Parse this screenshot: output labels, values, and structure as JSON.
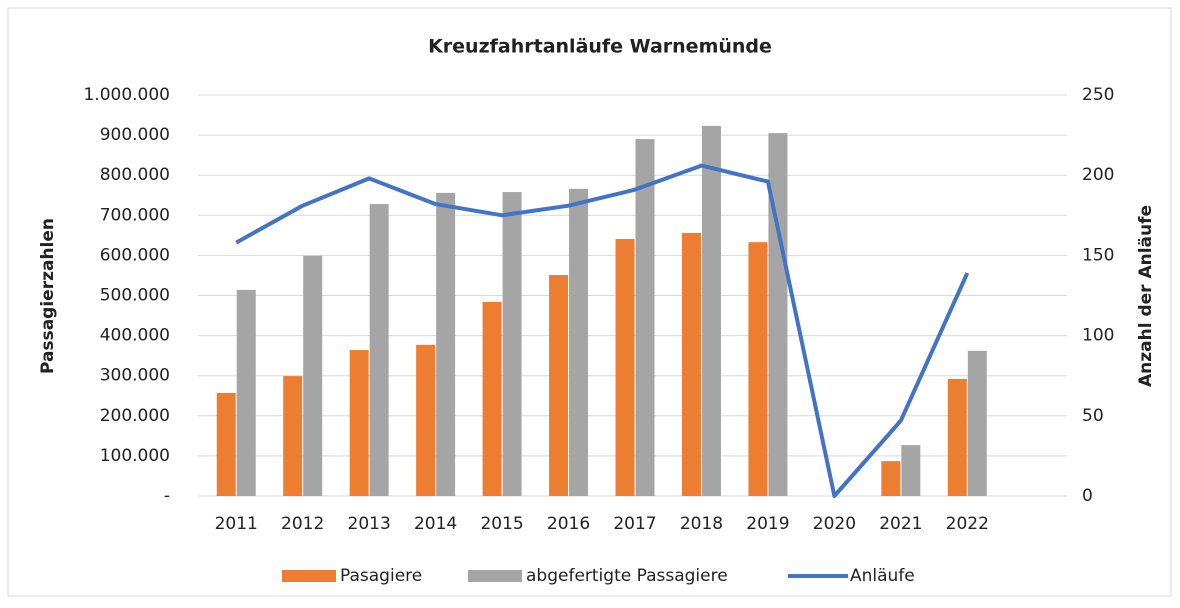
{
  "chart_data": {
    "type": "bar-line",
    "title": "Kreuzfahrtanläufe Warnemünde",
    "y_label": "Passagierzahlen",
    "y2_label": "Anzahl der Anläufe",
    "categories": [
      "2011",
      "2012",
      "2013",
      "2014",
      "2015",
      "2016",
      "2017",
      "2018",
      "2019",
      "2020",
      "2021",
      "2022",
      null
    ],
    "series": [
      {
        "name": "Pasagiere",
        "color": "#ed7d31",
        "type": "bar",
        "values": [
          257000,
          299000,
          364000,
          377000,
          484000,
          551000,
          641000,
          656000,
          633000,
          0,
          87000,
          292000,
          null
        ]
      },
      {
        "name": "abgefertigte Passagiere",
        "color": "#a5a5a5",
        "type": "bar",
        "values": [
          514000,
          599000,
          728000,
          756000,
          758000,
          766000,
          890000,
          923000,
          905000,
          0,
          127000,
          362000,
          null
        ]
      },
      {
        "name": "Anläufe",
        "color": "#4472c4",
        "type": "line",
        "axis": "y2",
        "values": [
          158,
          181,
          198,
          182,
          175,
          181,
          191,
          206,
          196,
          0,
          47,
          139,
          null
        ]
      }
    ],
    "ylim": [
      0,
      1000000
    ],
    "yticks": [
      {
        "value": 0,
        "label": "-"
      },
      {
        "value": 100000,
        "label": "100.000"
      },
      {
        "value": 200000,
        "label": "200.000"
      },
      {
        "value": 300000,
        "label": "300.000"
      },
      {
        "value": 400000,
        "label": "400.000"
      },
      {
        "value": 500000,
        "label": "500.000"
      },
      {
        "value": 600000,
        "label": "600.000"
      },
      {
        "value": 700000,
        "label": "700.000"
      },
      {
        "value": 800000,
        "label": "800.000"
      },
      {
        "value": 900000,
        "label": "900.000"
      },
      {
        "value": 1000000,
        "label": "1.000.000"
      }
    ],
    "y2lim": [
      0,
      250
    ],
    "y2ticks": [
      0,
      50,
      100,
      150,
      200,
      250
    ],
    "grid": true,
    "legend": "bottom"
  }
}
